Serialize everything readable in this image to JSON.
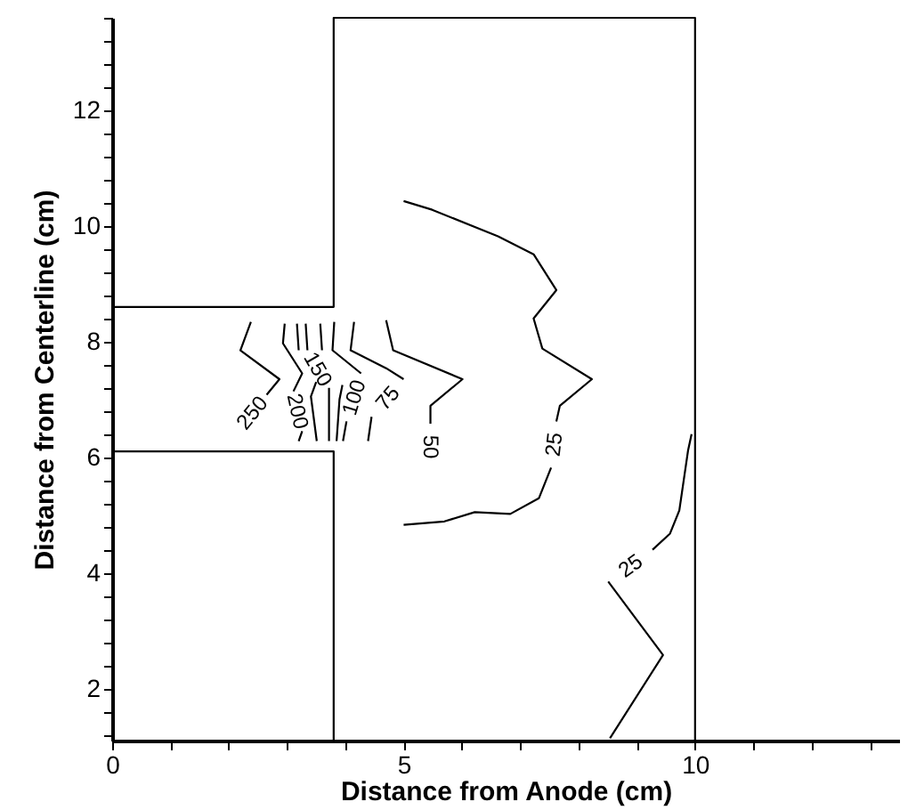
{
  "chart_data": {
    "type": "line",
    "xlabel": "Distance from Anode (cm)",
    "ylabel": "Distance from Centerline (cm)",
    "xlim": [
      0,
      13.5
    ],
    "ylim": [
      1.1,
      13.6
    ],
    "xticks": [
      0,
      {
        "value": 1,
        "label": null
      },
      {
        "value": 2,
        "label": null
      },
      {
        "value": 3,
        "label": null
      },
      {
        "value": 4,
        "label": null
      },
      5,
      {
        "value": 6,
        "label": null
      },
      {
        "value": 7,
        "label": null
      },
      {
        "value": 8,
        "label": null
      },
      {
        "value": 9,
        "label": null
      },
      10,
      {
        "value": 11,
        "label": null
      },
      {
        "value": 12,
        "label": null
      },
      {
        "value": 13,
        "label": null
      }
    ],
    "yticks": [
      {
        "value": 1.2,
        "label": null
      },
      {
        "value": 1.6,
        "label": null
      },
      2,
      {
        "value": 2.4,
        "label": null
      },
      {
        "value": 2.8,
        "label": null
      },
      {
        "value": 3.2,
        "label": null
      },
      {
        "value": 3.6,
        "label": null
      },
      4,
      {
        "value": 4.4,
        "label": null
      },
      {
        "value": 4.8,
        "label": null
      },
      {
        "value": 5.2,
        "label": null
      },
      {
        "value": 5.6,
        "label": null
      },
      6,
      {
        "value": 6.4,
        "label": null
      },
      {
        "value": 6.8,
        "label": null
      },
      {
        "value": 7.2,
        "label": null
      },
      {
        "value": 7.6,
        "label": null
      },
      8,
      {
        "value": 8.4,
        "label": null
      },
      {
        "value": 8.8,
        "label": null
      },
      {
        "value": 9.2,
        "label": null
      },
      {
        "value": 9.6,
        "label": null
      },
      10,
      {
        "value": 10.4,
        "label": null
      },
      {
        "value": 10.8,
        "label": null
      },
      {
        "value": 11.2,
        "label": null
      },
      {
        "value": 11.6,
        "label": null
      },
      12,
      {
        "value": 12.4,
        "label": null
      },
      {
        "value": 12.8,
        "label": null
      },
      {
        "value": 13.2,
        "label": null
      },
      {
        "value": 13.6,
        "label": null
      }
    ],
    "grid": false,
    "marker": "none",
    "line_style": "solid",
    "series": [
      {
        "color": "#000000",
        "x": [
          0,
          3.8,
          3.8,
          10,
          10
        ],
        "values": [
          8.6,
          8.6,
          13.6,
          13.6,
          1.1
        ]
      },
      {
        "color": "#000000",
        "x": [
          0,
          3.8,
          3.8
        ],
        "values": [
          6.1,
          6.1,
          1.1
        ]
      },
      {
        "name": "250",
        "color": "#000000",
        "x": [
          2.38,
          2.2,
          2.87,
          2.65
        ],
        "values": [
          8.34,
          7.85,
          7.35,
          7.08
        ]
      },
      {
        "name": "200",
        "color": "#000000",
        "x": [
          2.96,
          2.93,
          3.26,
          3.11,
          null,
          3.26,
          3.2
        ],
        "values": [
          8.31,
          7.97,
          7.45,
          7.14,
          null,
          6.45,
          6.28
        ]
      },
      {
        "color": "#000000",
        "x": [
          3.17,
          3.2,
          null,
          3.5,
          3.41,
          3.51
        ],
        "values": [
          8.31,
          7.85,
          null,
          7.3,
          7.05,
          6.28
        ]
      },
      {
        "name": "150",
        "color": "#000000",
        "x": [
          3.32,
          3.35,
          null,
          3.72,
          3.72
        ],
        "values": [
          8.31,
          7.85,
          null,
          7.2,
          6.28
        ]
      },
      {
        "color": "#000000",
        "x": [
          3.57,
          3.6,
          null,
          3.95,
          3.9,
          3.85
        ],
        "values": [
          8.31,
          7.85,
          null,
          7.25,
          7.0,
          6.28
        ]
      },
      {
        "name": "100",
        "color": "#000000",
        "x": [
          3.81,
          3.78,
          4.27,
          null,
          4.02,
          3.96
        ],
        "values": [
          8.34,
          7.85,
          7.45,
          null,
          6.62,
          6.28
        ]
      },
      {
        "name": "75",
        "color": "#000000",
        "x": [
          4.15,
          4.09,
          4.7,
          5.0,
          null,
          4.45,
          4.39
        ],
        "values": [
          8.34,
          7.85,
          7.54,
          7.35,
          null,
          6.7,
          6.28
        ]
      },
      {
        "name": "50",
        "color": "#000000",
        "x": [
          4.7,
          4.82,
          6.01,
          5.46,
          5.46
        ],
        "values": [
          8.37,
          7.85,
          7.35,
          6.89,
          6.58
        ]
      },
      {
        "name": "25",
        "color": "#000000",
        "x": [
          5.0,
          5.49,
          6.62,
          7.23,
          7.62,
          7.23,
          7.38,
          8.23,
          7.68,
          7.62,
          null,
          7.53,
          7.32,
          6.83,
          6.22,
          5.7,
          5.0
        ],
        "values": [
          10.43,
          10.28,
          9.82,
          9.51,
          8.89,
          8.4,
          7.88,
          7.35,
          6.89,
          6.62,
          null,
          5.82,
          5.29,
          5.02,
          5.05,
          4.89,
          4.83
        ]
      },
      {
        "name": "25",
        "color": "#000000",
        "x": [
          9.94,
          9.88,
          9.73,
          9.57,
          9.27,
          null,
          8.51,
          9.45,
          8.54
        ],
        "values": [
          6.4,
          6.12,
          5.08,
          4.68,
          4.4,
          null,
          3.85,
          2.58,
          1.14
        ]
      }
    ]
  }
}
